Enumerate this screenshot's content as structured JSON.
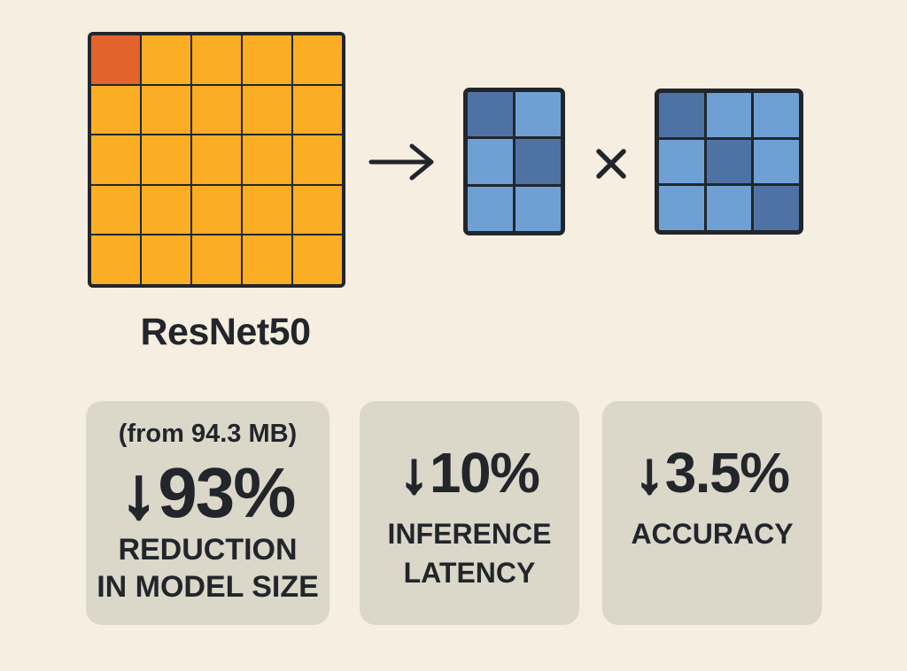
{
  "colors": {
    "background": "#F5EEE1",
    "ink": "#22262B",
    "card_bg": "#DBD7C9",
    "orange": "#FBAD24",
    "orange_highlight": "#E2632B",
    "blue_light": "#6FA0D4",
    "blue_dark": "#4F72A4"
  },
  "diagram": {
    "model_label": "ResNet50",
    "weight_matrix": {
      "colors": {
        "base": "#FBAD24",
        "hi": "#E2632B"
      },
      "pattern": [
        [
          "hi",
          "base",
          "base",
          "base",
          "base"
        ],
        [
          "base",
          "base",
          "base",
          "base",
          "base"
        ],
        [
          "base",
          "base",
          "base",
          "base",
          "base"
        ],
        [
          "base",
          "base",
          "base",
          "base",
          "base"
        ],
        [
          "base",
          "base",
          "base",
          "base",
          "base"
        ]
      ]
    },
    "factor_a": {
      "colors": {
        "light": "#6FA0D4",
        "dark": "#4F72A4"
      },
      "pattern": [
        [
          "dark",
          "light"
        ],
        [
          "light",
          "dark"
        ],
        [
          "light",
          "light"
        ]
      ]
    },
    "factor_b": {
      "colors": {
        "light": "#6FA0D4",
        "dark": "#4F72A4"
      },
      "pattern": [
        [
          "dark",
          "light",
          "light"
        ],
        [
          "light",
          "dark",
          "light"
        ],
        [
          "light",
          "light",
          "dark"
        ]
      ]
    },
    "icons": {
      "transform": "→",
      "multiply": "×",
      "decrease": "↓"
    }
  },
  "stats": [
    {
      "note": "(from 94.3 MB)",
      "value": "↓93%",
      "label_lines": [
        "REDUCTION",
        "IN MODEL SIZE"
      ]
    },
    {
      "value": "↓10%",
      "label_lines": [
        "INFERENCE",
        "LATENCY"
      ]
    },
    {
      "value": "↓3.5%",
      "label_lines": [
        "ACCURACY"
      ]
    }
  ]
}
